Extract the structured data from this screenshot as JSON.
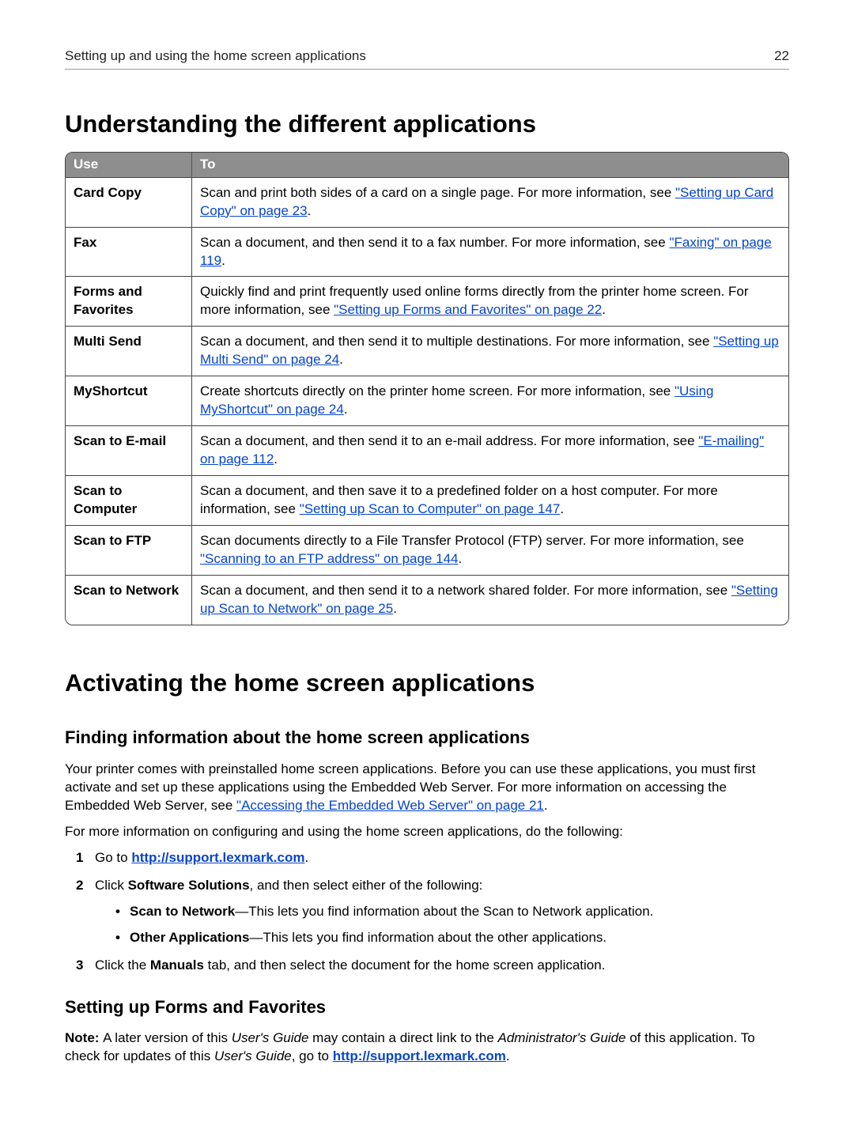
{
  "header": {
    "title": "Setting up and using the home screen applications",
    "page_number": "22"
  },
  "h1": "Understanding the different applications",
  "table": {
    "col_use": "Use",
    "col_to": "To",
    "rows": [
      {
        "use": "Card Copy",
        "pre": "Scan and print both sides of a card on a single page. For more information, see ",
        "link": "\"Setting up Card Copy\" on page 23",
        "post": "."
      },
      {
        "use": "Fax",
        "pre": "Scan a document, and then send it to a fax number. For more information, see ",
        "link": "\"Faxing\" on page 119",
        "post": "."
      },
      {
        "use": "Forms and Favorites",
        "pre": "Quickly find and print frequently used online forms directly from the printer home screen. For more information, see ",
        "link": "\"Setting up Forms and Favorites\" on page 22",
        "post": "."
      },
      {
        "use": "Multi Send",
        "pre": "Scan a document, and then send it to multiple destinations. For more information, see ",
        "link": "\"Setting up Multi Send\" on page 24",
        "post": "."
      },
      {
        "use": "MyShortcut",
        "pre": "Create shortcuts directly on the printer home screen. For more information, see ",
        "link": "\"Using MyShortcut\" on page 24",
        "post": "."
      },
      {
        "use": "Scan to E-mail",
        "pre": "Scan a document, and then send it to an e-mail address. For more information, see ",
        "link": "\"E-mailing\" on page 112",
        "post": "."
      },
      {
        "use": "Scan to Computer",
        "pre": "Scan a document, and then save it to a predefined folder on a host computer. For more information, see ",
        "link": "\"Setting up Scan to Computer\" on page 147",
        "post": "."
      },
      {
        "use": "Scan to FTP",
        "pre": "Scan documents directly to a File Transfer Protocol (FTP) server. For more information, see ",
        "link": "\"Scanning to an FTP address\" on page 144",
        "post": "."
      },
      {
        "use": "Scan to Network",
        "pre": "Scan a document, and then send it to a network shared folder. For more information, see ",
        "link": "\"Setting up Scan to Network\" on page 25",
        "post": "."
      }
    ]
  },
  "h2_activate": "Activating the home screen applications",
  "h3_finding": "Finding information about the home screen applications",
  "finding_para_pre": "Your printer comes with preinstalled home screen applications. Before you can use these applications, you must first activate and set up these applications using the Embedded Web Server. For more information on accessing the Embedded Web Server, see ",
  "finding_para_link": "\"Accessing the Embedded Web Server\" on page 21",
  "finding_para_post": ".",
  "finding_more": "For more information on configuring and using the home screen applications, do the following:",
  "steps": {
    "s1_pre": "Go to ",
    "s1_link": "http://support.lexmark.com",
    "s1_post": ".",
    "s2_pre": "Click ",
    "s2_bold": "Software Solutions",
    "s2_post": ", and then select either of the following:",
    "b1_bold": "Scan to Network",
    "b1_rest": "—This lets you find information about the Scan to Network application.",
    "b2_bold": "Other Applications",
    "b2_rest": "—This lets you find information about the other applications.",
    "s3_pre": "Click the ",
    "s3_bold": "Manuals",
    "s3_post": " tab, and then select the document for the home screen application."
  },
  "h3_forms": "Setting up Forms and Favorites",
  "note": {
    "label": "Note: ",
    "t1": "A later version of this ",
    "i1": "User's Guide",
    "t2": " may contain a direct link to the ",
    "i2": "Administrator's Guide",
    "t3": " of this application. To check for updates of this ",
    "i3": "User's Guide",
    "t4": ", go to ",
    "link": "http://support.lexmark.com",
    "t5": "."
  }
}
